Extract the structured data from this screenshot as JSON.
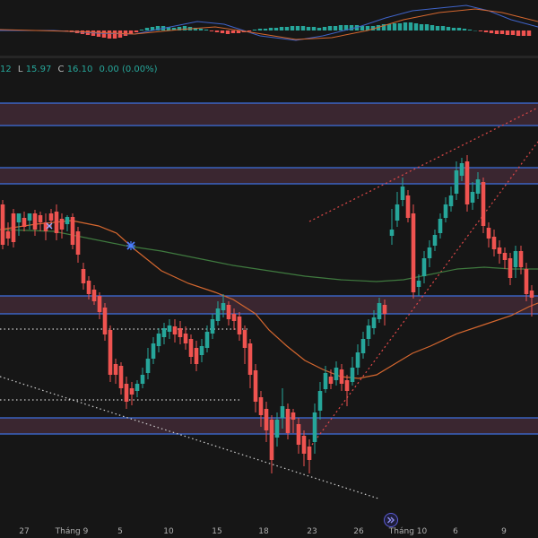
{
  "ohlc": {
    "lead": "12",
    "low_label": "L",
    "low_value": "15.97",
    "close_label": "C",
    "close_value": "16.10",
    "change": "0.00 (0.00%)"
  },
  "colors": {
    "background": "#161616",
    "candle_up": "#26a69a",
    "candle_down": "#ef5350",
    "zone_fill": "#3a2630",
    "zone_border": "#3d6fe0",
    "ma_fast": "#d5672f",
    "ma_slow": "#3f7a3f",
    "macd_line": "#3f63c8",
    "signal_line": "#d5672f",
    "trendline_red": "#e04848",
    "trendline_white": "#d0d0d0",
    "marker_blue": "#4a7cff"
  },
  "x_axis": {
    "ticks": [
      "27",
      "Tháng 9",
      "5",
      "10",
      "15",
      "18",
      "23",
      "26",
      "Tháng 10",
      "6",
      "9"
    ]
  },
  "navigation": {
    "goto_icon": "double-chevron-right-icon"
  }
}
